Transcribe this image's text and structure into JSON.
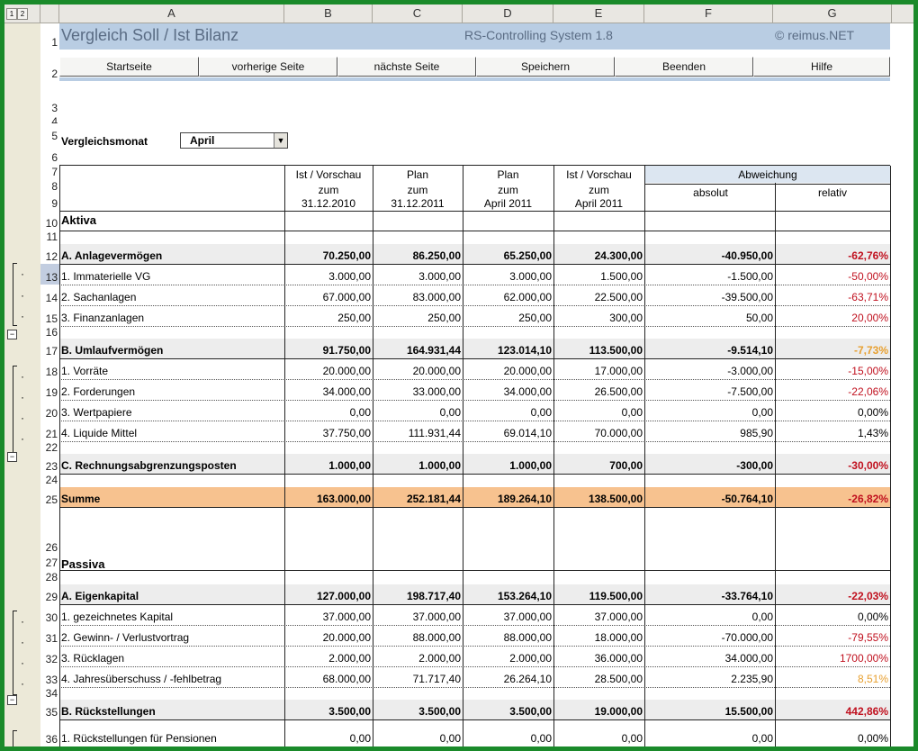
{
  "outline_buttons": [
    "1",
    "2"
  ],
  "columns": [
    "A",
    "B",
    "C",
    "D",
    "E",
    "F",
    "G"
  ],
  "title": {
    "main": "Vergleich Soll / Ist Bilanz",
    "system": "RS-Controlling System 1.8",
    "copyright": "© reimus.NET"
  },
  "nav": [
    "Startseite",
    "vorherige Seite",
    "nächste Seite",
    "Speichern",
    "Beenden",
    "Hilfe"
  ],
  "month": {
    "label": "Vergleichsmonat",
    "value": "April"
  },
  "table_header": {
    "col_b": [
      "Ist / Vorschau",
      "zum",
      "31.12.2010"
    ],
    "col_c": [
      "Plan",
      "zum",
      "31.12.2011"
    ],
    "col_d": [
      "Plan",
      "zum",
      "April 2011"
    ],
    "col_e": [
      "Ist / Vorschau",
      "zum",
      "April 2011"
    ],
    "deviation": "Abweichung",
    "absolute": "absolut",
    "relative": "relativ"
  },
  "row_numbers": [
    "1",
    "2",
    "3",
    "4",
    "5",
    "6",
    "7",
    "8",
    "9",
    "10",
    "11",
    "12",
    "13",
    "14",
    "15",
    "16",
    "17",
    "18",
    "19",
    "20",
    "21",
    "22",
    "23",
    "24",
    "25",
    "26",
    "27",
    "28",
    "29",
    "30",
    "31",
    "32",
    "33",
    "34",
    "35",
    "36"
  ],
  "rows": {
    "r10": "Aktiva",
    "r12": [
      "A. Anlagevermögen",
      "70.250,00",
      "86.250,00",
      "65.250,00",
      "24.300,00",
      "-40.950,00",
      "-62,76%"
    ],
    "r13": [
      "1. Immaterielle VG",
      "3.000,00",
      "3.000,00",
      "3.000,00",
      "1.500,00",
      "-1.500,00",
      "-50,00%"
    ],
    "r14": [
      "2. Sachanlagen",
      "67.000,00",
      "83.000,00",
      "62.000,00",
      "22.500,00",
      "-39.500,00",
      "-63,71%"
    ],
    "r15": [
      "3. Finanzanlagen",
      "250,00",
      "250,00",
      "250,00",
      "300,00",
      "50,00",
      "20,00%"
    ],
    "r17": [
      "B. Umlaufvermögen",
      "91.750,00",
      "164.931,44",
      "123.014,10",
      "113.500,00",
      "-9.514,10",
      "-7,73%"
    ],
    "r18": [
      "1. Vorräte",
      "20.000,00",
      "20.000,00",
      "20.000,00",
      "17.000,00",
      "-3.000,00",
      "-15,00%"
    ],
    "r19": [
      "2. Forderungen",
      "34.000,00",
      "33.000,00",
      "34.000,00",
      "26.500,00",
      "-7.500,00",
      "-22,06%"
    ],
    "r20": [
      "3. Wertpapiere",
      "0,00",
      "0,00",
      "0,00",
      "0,00",
      "0,00",
      "0,00%"
    ],
    "r21": [
      "4. Liquide Mittel",
      "37.750,00",
      "111.931,44",
      "69.014,10",
      "70.000,00",
      "985,90",
      "1,43%"
    ],
    "r23": [
      "C. Rechnungsabgrenzungsposten",
      "1.000,00",
      "1.000,00",
      "1.000,00",
      "700,00",
      "-300,00",
      "-30,00%"
    ],
    "r25": [
      "Summe",
      "163.000,00",
      "252.181,44",
      "189.264,10",
      "138.500,00",
      "-50.764,10",
      "-26,82%"
    ],
    "r27": "Passiva",
    "r29": [
      "A. Eigenkapital",
      "127.000,00",
      "198.717,40",
      "153.264,10",
      "119.500,00",
      "-33.764,10",
      "-22,03%"
    ],
    "r30": [
      "1. gezeichnetes Kapital",
      "37.000,00",
      "37.000,00",
      "37.000,00",
      "37.000,00",
      "0,00",
      "0,00%"
    ],
    "r31": [
      "2. Gewinn- / Verlustvortrag",
      "20.000,00",
      "88.000,00",
      "88.000,00",
      "18.000,00",
      "-70.000,00",
      "-79,55%"
    ],
    "r32": [
      "3. Rücklagen",
      "2.000,00",
      "2.000,00",
      "2.000,00",
      "36.000,00",
      "34.000,00",
      "1700,00%"
    ],
    "r33": [
      "4. Jahresüberschuss / -fehlbetrag",
      "68.000,00",
      "71.717,40",
      "26.264,10",
      "28.500,00",
      "2.235,90",
      "8,51%"
    ],
    "r35": [
      "B. Rückstellungen",
      "3.500,00",
      "3.500,00",
      "3.500,00",
      "19.000,00",
      "15.500,00",
      "442,86%"
    ],
    "r36": [
      "1. Rückstellungen für Pensionen",
      "0,00",
      "0,00",
      "0,00",
      "0,00",
      "0,00",
      "0,00%"
    ]
  },
  "colors": {
    "title_band": "#b9cde3",
    "subtotal_band": "#ededed",
    "sum_band": "#f7c28f",
    "negative": "#c0101e",
    "warning": "#e8a030",
    "selected_row": "#c2cde0"
  }
}
